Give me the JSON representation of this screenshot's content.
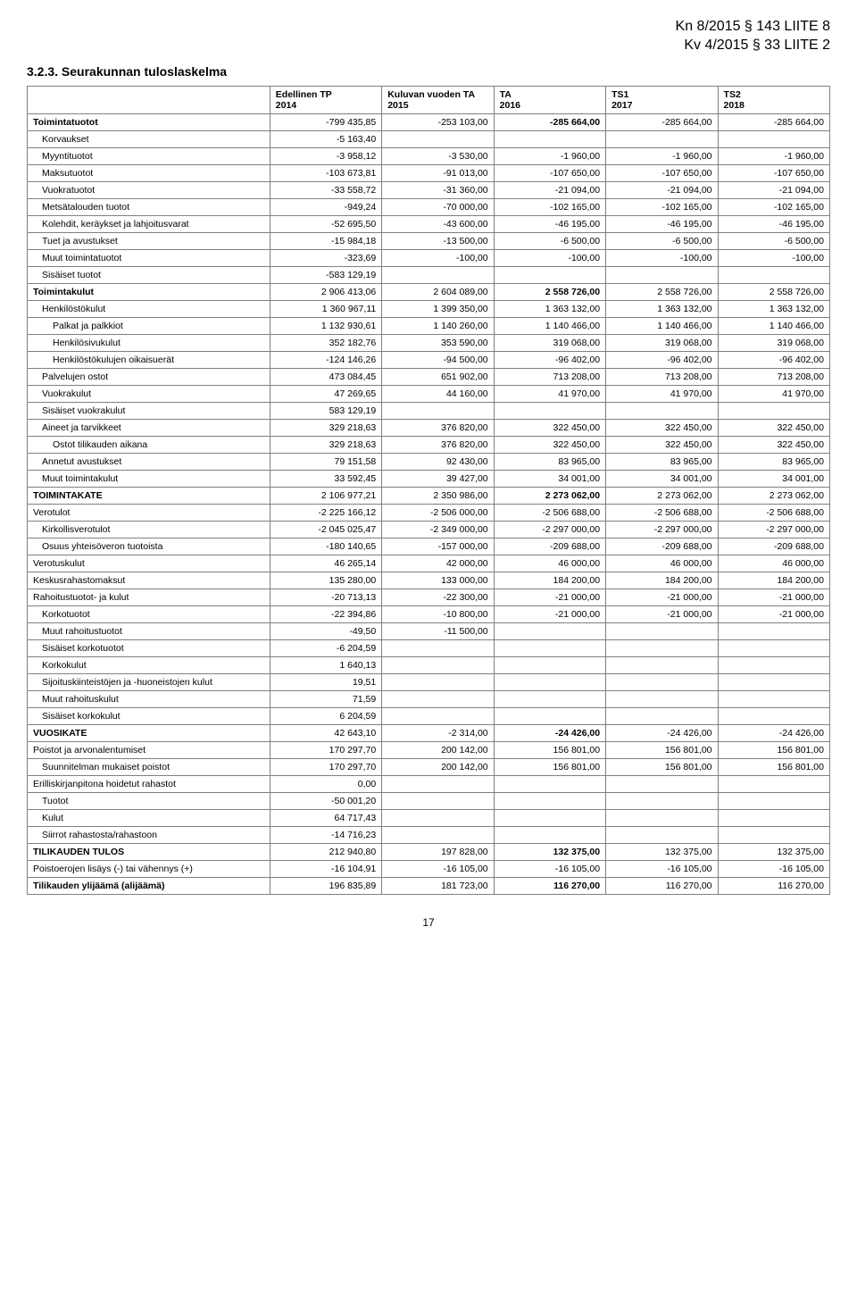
{
  "header": {
    "line1": "Kn 8/2015 § 143 LIITE 8",
    "line2": "Kv 4/2015 § 33 LIITE 2"
  },
  "section_title": "3.2.3. Seurakunnan tuloslaskelma",
  "page_number": "17",
  "columns": [
    {
      "label": ""
    },
    {
      "label": "Edellinen TP",
      "sub": "2014"
    },
    {
      "label": "Kuluvan vuoden TA",
      "sub": "2015"
    },
    {
      "label": "TA",
      "sub": "2016"
    },
    {
      "label": "TS1",
      "sub": "2017"
    },
    {
      "label": "TS2",
      "sub": "2018"
    }
  ],
  "rows": [
    {
      "label": "Toimintatuotot",
      "indent": 0,
      "bold": true,
      "bold_col": 3,
      "vals": [
        "-799 435,85",
        "-253 103,00",
        "-285 664,00",
        "-285 664,00",
        "-285 664,00"
      ]
    },
    {
      "label": "Korvaukset",
      "indent": 1,
      "vals": [
        "-5 163,40",
        "",
        "",
        "",
        ""
      ]
    },
    {
      "label": "Myyntituotot",
      "indent": 1,
      "vals": [
        "-3 958,12",
        "-3 530,00",
        "-1 960,00",
        "-1 960,00",
        "-1 960,00"
      ]
    },
    {
      "label": "Maksutuotot",
      "indent": 1,
      "vals": [
        "-103 673,81",
        "-91 013,00",
        "-107 650,00",
        "-107 650,00",
        "-107 650,00"
      ]
    },
    {
      "label": "Vuokratuotot",
      "indent": 1,
      "vals": [
        "-33 558,72",
        "-31 360,00",
        "-21 094,00",
        "-21 094,00",
        "-21 094,00"
      ]
    },
    {
      "label": "Metsätalouden tuotot",
      "indent": 1,
      "vals": [
        "-949,24",
        "-70 000,00",
        "-102 165,00",
        "-102 165,00",
        "-102 165,00"
      ]
    },
    {
      "label": "Kolehdit, keräykset ja lahjoitusvarat",
      "indent": 1,
      "vals": [
        "-52 695,50",
        "-43 600,00",
        "-46 195,00",
        "-46 195,00",
        "-46 195,00"
      ]
    },
    {
      "label": "Tuet ja avustukset",
      "indent": 1,
      "vals": [
        "-15 984,18",
        "-13 500,00",
        "-6 500,00",
        "-6 500,00",
        "-6 500,00"
      ]
    },
    {
      "label": "Muut toimintatuotot",
      "indent": 1,
      "vals": [
        "-323,69",
        "-100,00",
        "-100,00",
        "-100,00",
        "-100,00"
      ]
    },
    {
      "label": "Sisäiset tuotot",
      "indent": 1,
      "vals": [
        "-583 129,19",
        "",
        "",
        "",
        ""
      ]
    },
    {
      "label": "Toimintakulut",
      "indent": 0,
      "bold": true,
      "bold_col": 3,
      "vals": [
        "2 906 413,06",
        "2 604 089,00",
        "2 558 726,00",
        "2 558 726,00",
        "2 558 726,00"
      ]
    },
    {
      "label": "Henkilöstökulut",
      "indent": 1,
      "vals": [
        "1 360 967,11",
        "1 399 350,00",
        "1 363 132,00",
        "1 363 132,00",
        "1 363 132,00"
      ]
    },
    {
      "label": "Palkat ja palkkiot",
      "indent": 2,
      "vals": [
        "1 132 930,61",
        "1 140 260,00",
        "1 140 466,00",
        "1 140 466,00",
        "1 140 466,00"
      ]
    },
    {
      "label": "Henkilösivukulut",
      "indent": 2,
      "vals": [
        "352 182,76",
        "353 590,00",
        "319 068,00",
        "319 068,00",
        "319 068,00"
      ]
    },
    {
      "label": "Henkilöstökulujen oikaisuerät",
      "indent": 2,
      "vals": [
        "-124 146,26",
        "-94 500,00",
        "-96 402,00",
        "-96 402,00",
        "-96 402,00"
      ]
    },
    {
      "label": "Palvelujen ostot",
      "indent": 1,
      "vals": [
        "473 084,45",
        "651 902,00",
        "713 208,00",
        "713 208,00",
        "713 208,00"
      ]
    },
    {
      "label": "Vuokrakulut",
      "indent": 1,
      "vals": [
        "47 269,65",
        "44 160,00",
        "41 970,00",
        "41 970,00",
        "41 970,00"
      ]
    },
    {
      "label": "Sisäiset vuokrakulut",
      "indent": 1,
      "vals": [
        "583 129,19",
        "",
        "",
        "",
        ""
      ]
    },
    {
      "label": "Aineet ja tarvikkeet",
      "indent": 1,
      "vals": [
        "329 218,63",
        "376 820,00",
        "322 450,00",
        "322 450,00",
        "322 450,00"
      ]
    },
    {
      "label": "Ostot tilikauden aikana",
      "indent": 2,
      "vals": [
        "329 218,63",
        "376 820,00",
        "322 450,00",
        "322 450,00",
        "322 450,00"
      ]
    },
    {
      "label": "Annetut avustukset",
      "indent": 1,
      "vals": [
        "79 151,58",
        "92 430,00",
        "83 965,00",
        "83 965,00",
        "83 965,00"
      ]
    },
    {
      "label": "Muut toimintakulut",
      "indent": 1,
      "vals": [
        "33 592,45",
        "39 427,00",
        "34 001,00",
        "34 001,00",
        "34 001,00"
      ]
    },
    {
      "label": "TOIMINTAKATE",
      "indent": 0,
      "bold": true,
      "bold_col": 3,
      "vals": [
        "2 106 977,21",
        "2 350 986,00",
        "2 273 062,00",
        "2 273 062,00",
        "2 273 062,00"
      ]
    },
    {
      "label": "Verotulot",
      "indent": 0,
      "vals": [
        "-2 225 166,12",
        "-2 506 000,00",
        "-2 506 688,00",
        "-2 506 688,00",
        "-2 506 688,00"
      ]
    },
    {
      "label": "Kirkollisverotulot",
      "indent": 1,
      "vals": [
        "-2 045 025,47",
        "-2 349 000,00",
        "-2 297 000,00",
        "-2 297 000,00",
        "-2 297 000,00"
      ]
    },
    {
      "label": "Osuus yhteisöveron tuotoista",
      "indent": 1,
      "vals": [
        "-180 140,65",
        "-157 000,00",
        "-209 688,00",
        "-209 688,00",
        "-209 688,00"
      ]
    },
    {
      "label": "Verotuskulut",
      "indent": 0,
      "vals": [
        "46 265,14",
        "42 000,00",
        "46 000,00",
        "46 000,00",
        "46 000,00"
      ]
    },
    {
      "label": "Keskusrahastomaksut",
      "indent": 0,
      "vals": [
        "135 280,00",
        "133 000,00",
        "184 200,00",
        "184 200,00",
        "184 200,00"
      ]
    },
    {
      "label": "Rahoitustuotot- ja kulut",
      "indent": 0,
      "vals": [
        "-20 713,13",
        "-22 300,00",
        "-21 000,00",
        "-21 000,00",
        "-21 000,00"
      ]
    },
    {
      "label": "Korkotuotot",
      "indent": 1,
      "vals": [
        "-22 394,86",
        "-10 800,00",
        "-21 000,00",
        "-21 000,00",
        "-21 000,00"
      ]
    },
    {
      "label": "Muut rahoitustuotot",
      "indent": 1,
      "vals": [
        "-49,50",
        "-11 500,00",
        "",
        "",
        ""
      ]
    },
    {
      "label": "Sisäiset korkotuotot",
      "indent": 1,
      "vals": [
        "-6 204,59",
        "",
        "",
        "",
        ""
      ]
    },
    {
      "label": "Korkokulut",
      "indent": 1,
      "vals": [
        "1 640,13",
        "",
        "",
        "",
        ""
      ]
    },
    {
      "label": "Sijoituskiinteistöjen ja -huoneistojen kulut",
      "indent": 1,
      "vals": [
        "19,51",
        "",
        "",
        "",
        ""
      ]
    },
    {
      "label": "Muut rahoituskulut",
      "indent": 1,
      "vals": [
        "71,59",
        "",
        "",
        "",
        ""
      ]
    },
    {
      "label": "Sisäiset korkokulut",
      "indent": 1,
      "vals": [
        "6 204,59",
        "",
        "",
        "",
        ""
      ]
    },
    {
      "label": "VUOSIKATE",
      "indent": 0,
      "bold": true,
      "bold_col": 3,
      "vals": [
        "42 643,10",
        "-2 314,00",
        "-24 426,00",
        "-24 426,00",
        "-24 426,00"
      ]
    },
    {
      "label": "Poistot ja arvonalentumiset",
      "indent": 0,
      "vals": [
        "170 297,70",
        "200 142,00",
        "156 801,00",
        "156 801,00",
        "156 801,00"
      ]
    },
    {
      "label": "Suunnitelman mukaiset poistot",
      "indent": 1,
      "vals": [
        "170 297,70",
        "200 142,00",
        "156 801,00",
        "156 801,00",
        "156 801,00"
      ]
    },
    {
      "label": "Erilliskirjanpitona hoidetut rahastot",
      "indent": 0,
      "vals": [
        "0,00",
        "",
        "",
        "",
        ""
      ]
    },
    {
      "label": "Tuotot",
      "indent": 1,
      "vals": [
        "-50 001,20",
        "",
        "",
        "",
        ""
      ]
    },
    {
      "label": "Kulut",
      "indent": 1,
      "vals": [
        "64 717,43",
        "",
        "",
        "",
        ""
      ]
    },
    {
      "label": "Siirrot rahastosta/rahastoon",
      "indent": 1,
      "vals": [
        "-14 716,23",
        "",
        "",
        "",
        ""
      ]
    },
    {
      "label": "TILIKAUDEN TULOS",
      "indent": 0,
      "bold": true,
      "bold_col": 3,
      "vals": [
        "212 940,80",
        "197 828,00",
        "132 375,00",
        "132 375,00",
        "132 375,00"
      ]
    },
    {
      "label": "Poistoerojen lisäys (-) tai vähennys (+)",
      "indent": 0,
      "vals": [
        "-16 104,91",
        "-16 105,00",
        "-16 105,00",
        "-16 105,00",
        "-16 105,00"
      ]
    },
    {
      "label": "Tilikauden ylijäämä (alijäämä)",
      "indent": 0,
      "bold": true,
      "bold_col": 3,
      "vals": [
        "196 835,89",
        "181 723,00",
        "116 270,00",
        "116 270,00",
        "116 270,00"
      ]
    }
  ]
}
